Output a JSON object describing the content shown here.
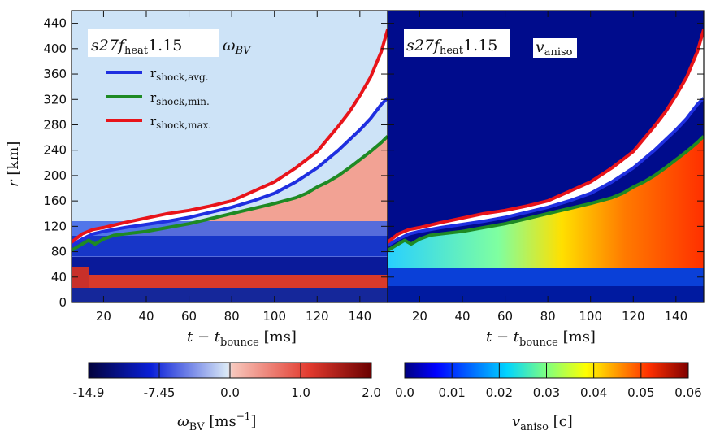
{
  "chart_data": [
    {
      "type": "heatmap",
      "panel": "left",
      "model_label": "s27f_heat1.15",
      "quantity_label": "ω_BV",
      "xlabel": "t − t_bounce [ms]",
      "ylabel": "r [km]",
      "xlim": [
        5,
        153
      ],
      "ylim": [
        0,
        460
      ],
      "x_ticks": [
        20,
        40,
        60,
        80,
        100,
        120,
        140
      ],
      "y_ticks": [
        0,
        40,
        80,
        120,
        160,
        200,
        240,
        280,
        320,
        360,
        400,
        440
      ],
      "legend": {
        "placement": "top-left",
        "entries": [
          {
            "label": "r_shock,avg.",
            "color": "#1f2fe0"
          },
          {
            "label": "r_shock,min.",
            "color": "#1e8a24"
          },
          {
            "label": "r_shock,max.",
            "color": "#e8141a"
          }
        ]
      },
      "series": [
        {
          "name": "r_shock,avg.",
          "color": "#1f2fe0",
          "x": [
            5,
            10,
            15,
            20,
            30,
            40,
            50,
            60,
            70,
            80,
            90,
            100,
            110,
            120,
            130,
            140,
            145,
            150,
            153
          ],
          "values": [
            90,
            100,
            108,
            112,
            118,
            123,
            128,
            134,
            142,
            150,
            160,
            172,
            190,
            212,
            240,
            272,
            290,
            312,
            322
          ]
        },
        {
          "name": "r_shock,min.",
          "color": "#1e8a24",
          "x": [
            5,
            10,
            13,
            16,
            20,
            25,
            30,
            40,
            50,
            60,
            70,
            80,
            90,
            100,
            110,
            115,
            120,
            125,
            130,
            135,
            140,
            145,
            150,
            153
          ],
          "values": [
            82,
            92,
            98,
            92,
            100,
            106,
            108,
            112,
            118,
            124,
            132,
            140,
            148,
            156,
            165,
            172,
            182,
            190,
            200,
            212,
            225,
            238,
            252,
            262
          ]
        },
        {
          "name": "r_shock,max.",
          "color": "#e8141a",
          "x": [
            5,
            10,
            15,
            20,
            30,
            40,
            50,
            60,
            70,
            80,
            90,
            100,
            110,
            120,
            130,
            135,
            140,
            145,
            150,
            153
          ],
          "values": [
            95,
            108,
            115,
            118,
            126,
            133,
            140,
            145,
            152,
            160,
            175,
            190,
            212,
            238,
            278,
            300,
            326,
            355,
            395,
            430
          ]
        }
      ]
    },
    {
      "type": "heatmap",
      "panel": "right",
      "model_label": "s27f_heat1.15",
      "quantity_label": "v_aniso",
      "xlabel": "t − t_bounce [ms]",
      "xlim": [
        5,
        153
      ],
      "ylim": [
        0,
        460
      ],
      "x_ticks": [
        20,
        40,
        60,
        80,
        100,
        120,
        140
      ]
    }
  ],
  "panels": {
    "left": {
      "model": "s27f",
      "model_sub": "heat",
      "model_num": "1.15",
      "quantity": "ω",
      "quantity_sub": "BV"
    },
    "right": {
      "model": "s27f",
      "model_sub": "heat",
      "model_num": "1.15",
      "quantity": "v",
      "quantity_sub": "aniso"
    }
  },
  "axes": {
    "xlabel_main": "t − t",
    "xlabel_sub": "bounce",
    "xlabel_unit": " [ms]",
    "ylabel_main": "r",
    "ylabel_unit": " [km]"
  },
  "legend_text": {
    "base": "r",
    "avg": "shock,avg.",
    "min": "shock,min.",
    "max": "shock,max."
  },
  "colorbars": {
    "left": {
      "ticks": [
        "-14.9",
        "-7.45",
        "0.0",
        "1.0",
        "2.0"
      ],
      "label_main": "ω",
      "label_sub": "BV",
      "label_unit": " [ms",
      "label_exp": "−1",
      "label_close": "]",
      "colors": [
        "#02023c",
        "#0a1fd8",
        "#d9e8f6",
        "#f7c6bb",
        "#e23a2e",
        "#6a0000"
      ]
    },
    "right": {
      "ticks": [
        "0.0",
        "0.01",
        "0.02",
        "0.03",
        "0.04",
        "0.05",
        "0.06"
      ],
      "label_main": "v",
      "label_sub": "aniso",
      "label_unit": " [c]",
      "colors": [
        "#00007f",
        "#0000ff",
        "#007fff",
        "#00ffff",
        "#7fff7f",
        "#ffff00",
        "#ff7f00",
        "#ff0000",
        "#7f0000"
      ]
    }
  }
}
